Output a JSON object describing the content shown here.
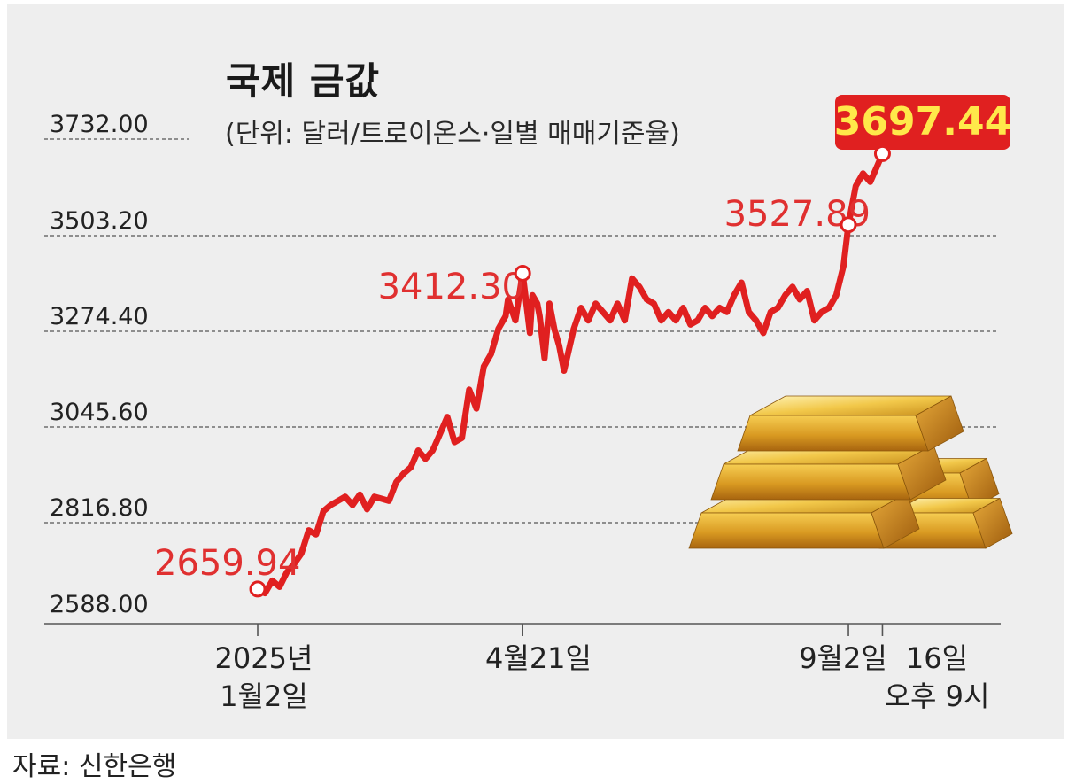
{
  "chart_data": {
    "type": "line",
    "title": "국제 금값",
    "subtitle": "(단위: 달러/트로이온스·일별 매매기준율)",
    "source": "자료: 신한은행",
    "ylim": [
      2588.0,
      3732.0
    ],
    "y_ticks": [
      "3732.00",
      "3503.20",
      "3274.40",
      "3045.60",
      "2816.80",
      "2588.00"
    ],
    "x_ticks": [
      {
        "day": 0,
        "lines": [
          "2025년",
          "1월2일"
        ]
      },
      {
        "day": 109,
        "lines": [
          "4월21일"
        ]
      },
      {
        "day": 243,
        "lines": [
          "9월2일"
        ]
      },
      {
        "day": 257,
        "lines": [
          "16일",
          "오후 9시"
        ]
      }
    ],
    "annotations": [
      {
        "day": 0,
        "value": 2659.94,
        "label": "2659.94",
        "boxed": false
      },
      {
        "day": 109,
        "value": 3412.3,
        "label": "3412.30",
        "boxed": false
      },
      {
        "day": 243,
        "value": 3527.89,
        "label": "3527.89",
        "boxed": false
      },
      {
        "day": 257,
        "value": 3697.44,
        "label": "3697.44",
        "boxed": true
      }
    ],
    "colors": {
      "line": "#e02020",
      "label": "#e03030",
      "box_bg": "#e02020",
      "box_text": "#ffe84a",
      "grid": "#555555",
      "axis": "#555555",
      "text": "#222222",
      "background": "#eeeeee"
    },
    "series": [
      {
        "x": [
          0,
          3,
          6,
          9,
          12,
          15,
          18,
          21,
          24,
          27,
          30,
          33,
          36,
          39,
          42,
          45,
          48,
          51,
          54,
          57,
          60,
          63,
          66,
          69,
          72,
          75,
          78,
          81,
          84,
          87,
          90,
          93,
          96,
          99,
          102,
          103,
          106,
          109,
          112,
          113,
          115,
          116,
          118,
          120,
          122,
          124,
          126,
          128,
          130,
          133,
          136,
          139,
          142,
          145,
          148,
          151,
          154,
          157,
          160,
          163,
          166,
          169,
          172,
          175,
          178,
          181,
          184,
          187,
          190,
          193,
          196,
          199,
          202,
          205,
          208,
          211,
          214,
          217,
          220,
          223,
          226,
          229,
          232,
          235,
          238,
          241,
          243,
          246,
          249,
          252,
          255,
          257
        ],
        "values": [
          2659.94,
          2650,
          2680,
          2665,
          2700,
          2720,
          2745,
          2800,
          2790,
          2845,
          2860,
          2870,
          2880,
          2860,
          2885,
          2850,
          2880,
          2875,
          2870,
          2915,
          2935,
          2950,
          2990,
          2970,
          2990,
          3030,
          3070,
          3010,
          3020,
          3135,
          3090,
          3190,
          3220,
          3280,
          3310,
          3350,
          3300,
          3412.3,
          3270,
          3360,
          3340,
          3310,
          3210,
          3340,
          3280,
          3240,
          3180,
          3230,
          3280,
          3330,
          3300,
          3340,
          3320,
          3300,
          3340,
          3300,
          3400,
          3380,
          3350,
          3340,
          3300,
          3320,
          3300,
          3330,
          3290,
          3300,
          3330,
          3310,
          3330,
          3320,
          3360,
          3390,
          3320,
          3300,
          3270,
          3320,
          3330,
          3360,
          3380,
          3350,
          3370,
          3300,
          3320,
          3330,
          3360,
          3430,
          3527.89,
          3620,
          3650,
          3630,
          3670,
          3697.44
        ]
      }
    ]
  }
}
